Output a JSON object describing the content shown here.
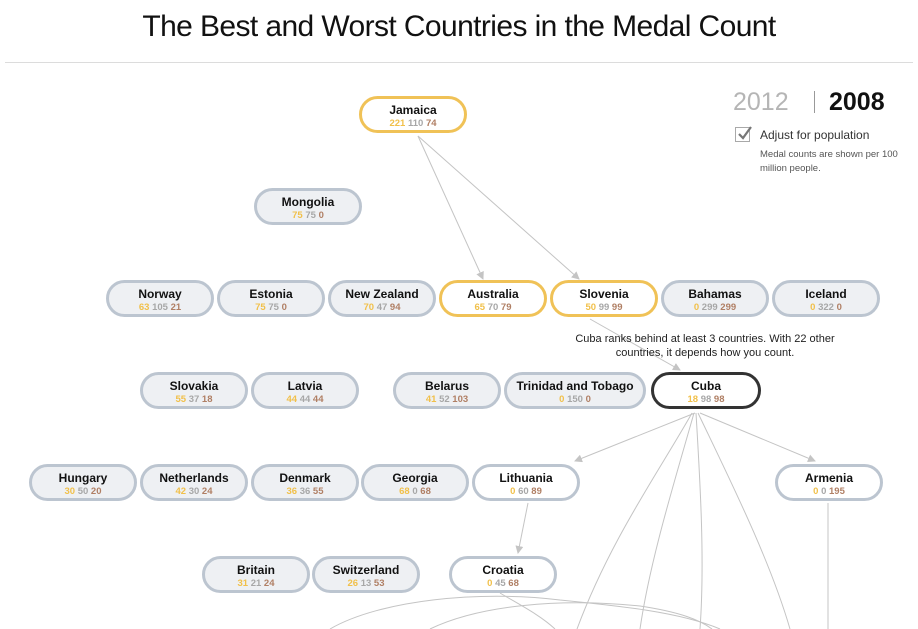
{
  "title": "The Best and Worst Countries in the Medal Count",
  "years": {
    "y2012": "2012",
    "y2008": "2008",
    "selected": "2008"
  },
  "adjust": {
    "checked": true,
    "label": "Adjust for population",
    "note": "Medal counts are shown per 100 million people."
  },
  "annotation": "Cuba ranks behind at least 3 countries. With 22 other countries, it depends how you count.",
  "nodes": {
    "jamaica": {
      "name": "Jamaica",
      "gold": "221",
      "silver": "110",
      "bronze": "74"
    },
    "mongolia": {
      "name": "Mongolia",
      "gold": "75",
      "silver": "75",
      "bronze": "0"
    },
    "norway": {
      "name": "Norway",
      "gold": "63",
      "silver": "105",
      "bronze": "21"
    },
    "estonia": {
      "name": "Estonia",
      "gold": "75",
      "silver": "75",
      "bronze": "0"
    },
    "new_zealand": {
      "name": "New Zealand",
      "gold": "70",
      "silver": "47",
      "bronze": "94"
    },
    "australia": {
      "name": "Australia",
      "gold": "65",
      "silver": "70",
      "bronze": "79"
    },
    "slovenia": {
      "name": "Slovenia",
      "gold": "50",
      "silver": "99",
      "bronze": "99"
    },
    "bahamas": {
      "name": "Bahamas",
      "gold": "0",
      "silver": "299",
      "bronze": "299"
    },
    "iceland": {
      "name": "Iceland",
      "gold": "0",
      "silver": "322",
      "bronze": "0"
    },
    "slovakia": {
      "name": "Slovakia",
      "gold": "55",
      "silver": "37",
      "bronze": "18"
    },
    "latvia": {
      "name": "Latvia",
      "gold": "44",
      "silver": "44",
      "bronze": "44"
    },
    "belarus": {
      "name": "Belarus",
      "gold": "41",
      "silver": "52",
      "bronze": "103"
    },
    "trinidad": {
      "name": "Trinidad and Tobago",
      "gold": "0",
      "silver": "150",
      "bronze": "0"
    },
    "cuba": {
      "name": "Cuba",
      "gold": "18",
      "silver": "98",
      "bronze": "98"
    },
    "hungary": {
      "name": "Hungary",
      "gold": "30",
      "silver": "50",
      "bronze": "20"
    },
    "netherlands": {
      "name": "Netherlands",
      "gold": "42",
      "silver": "30",
      "bronze": "24"
    },
    "denmark": {
      "name": "Denmark",
      "gold": "36",
      "silver": "36",
      "bronze": "55"
    },
    "georgia": {
      "name": "Georgia",
      "gold": "68",
      "silver": "0",
      "bronze": "68"
    },
    "lithuania": {
      "name": "Lithuania",
      "gold": "0",
      "silver": "60",
      "bronze": "89"
    },
    "armenia": {
      "name": "Armenia",
      "gold": "0",
      "silver": "0",
      "bronze": "195"
    },
    "britain": {
      "name": "Britain",
      "gold": "31",
      "silver": "21",
      "bronze": "24"
    },
    "switzerland": {
      "name": "Switzerland",
      "gold": "26",
      "silver": "13",
      "bronze": "53"
    },
    "croatia": {
      "name": "Croatia",
      "gold": "0",
      "silver": "45",
      "bronze": "68"
    }
  },
  "colors": {
    "gold": "#f1c04a",
    "silver": "#a7a7a7",
    "bronze": "#b07f64",
    "node_border": "#bcc5d0",
    "node_fill": "#eef0f3",
    "highlight_border": "#f0c257",
    "selected_border": "#333333",
    "edge": "#c4c4c4"
  }
}
